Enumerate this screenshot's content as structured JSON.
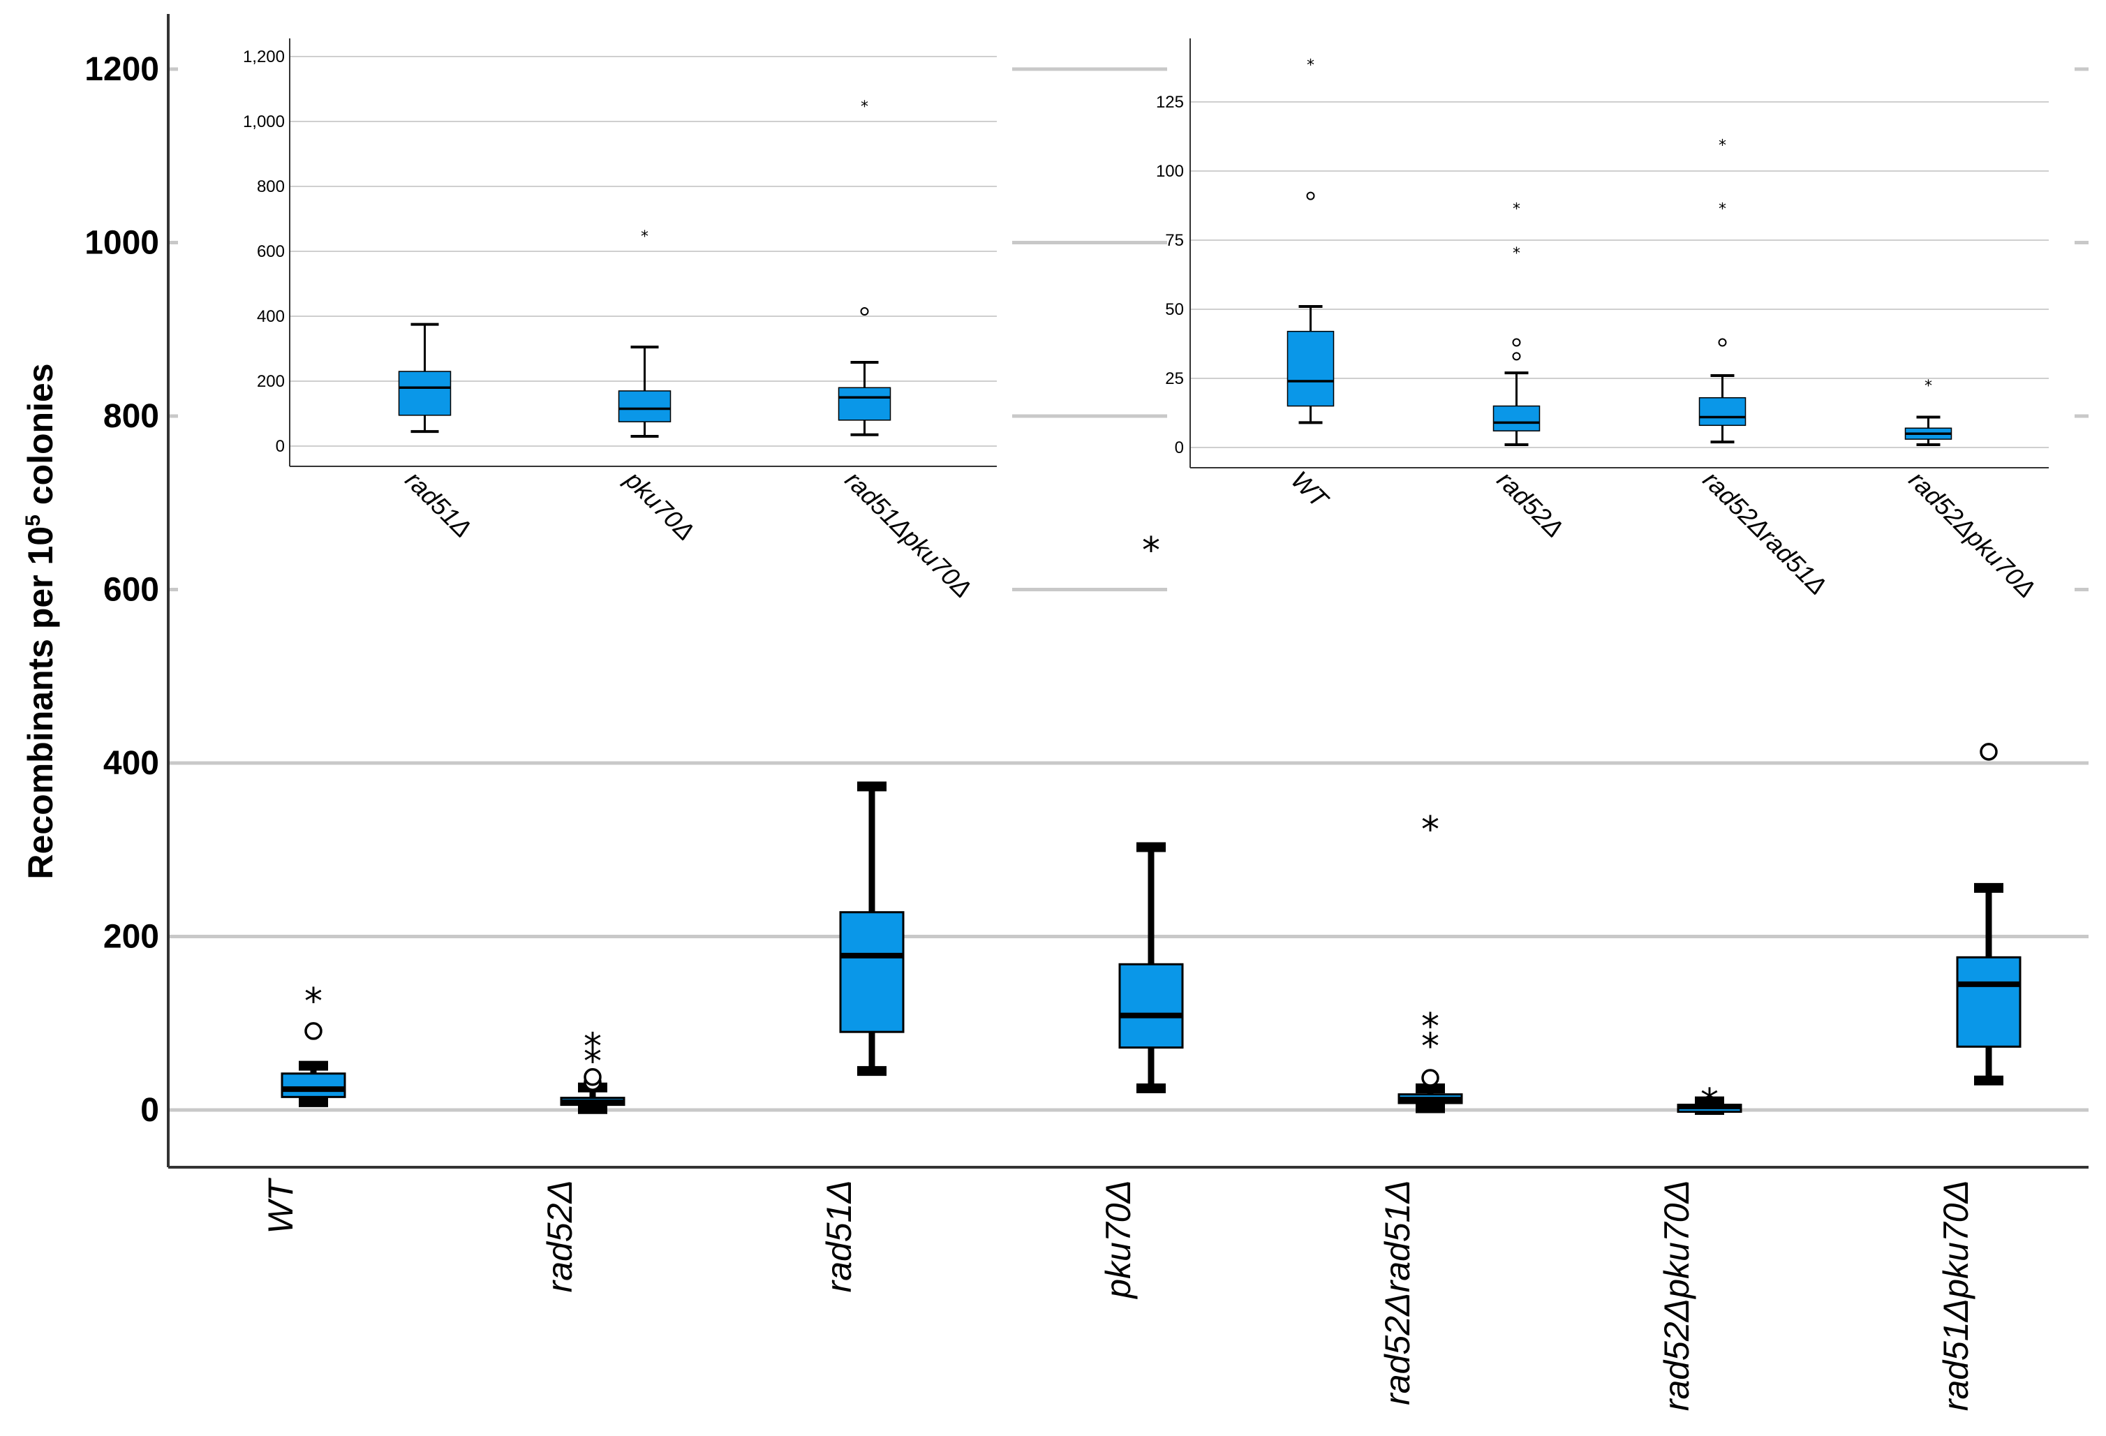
{
  "chart_data": [
    {
      "type": "box",
      "name": "main",
      "ylabel": "Recombinants per 10",
      "ylabel_sup": "5",
      "ylabel_suffix": " colonies",
      "ylim": [
        -65,
        1260
      ],
      "yticks": [
        0,
        200,
        400,
        600,
        800,
        1000,
        1200
      ],
      "ytick_labels": [
        "0",
        "200",
        "400",
        "600",
        "800",
        "1000",
        "1200"
      ],
      "color": "#0a97e8",
      "categories": [
        "WT",
        "rad52Δ",
        "rad51Δ",
        "pku70Δ",
        "rad52Δrad51Δ",
        "rad52Δpku70Δ",
        "rad51Δpku70Δ"
      ],
      "boxes": [
        {
          "min": 9,
          "q1": 15,
          "median": 24,
          "q3": 42,
          "max": 51,
          "outliers": [
            {
              "v": 91,
              "s": "o"
            },
            {
              "v": 140,
              "s": "*"
            }
          ]
        },
        {
          "min": 1,
          "q1": 6,
          "median": 9,
          "q3": 14,
          "max": 26,
          "outliers": [
            {
              "v": 32,
              "s": "o"
            },
            {
              "v": 38,
              "s": "o"
            },
            {
              "v": 71,
              "s": "*"
            },
            {
              "v": 88,
              "s": "*"
            }
          ]
        },
        {
          "min": 45,
          "q1": 90,
          "median": 178,
          "q3": 228,
          "max": 373,
          "outliers": []
        },
        {
          "min": 25,
          "q1": 72,
          "median": 109,
          "q3": 168,
          "max": 303,
          "outliers": [
            {
              "v": 660,
              "s": "*"
            }
          ]
        },
        {
          "min": 2,
          "q1": 8,
          "median": 12,
          "q3": 18,
          "max": 25,
          "outliers": [
            {
              "v": 37,
              "s": "o"
            },
            {
              "v": 88,
              "s": "*"
            },
            {
              "v": 111,
              "s": "*"
            },
            {
              "v": 338,
              "s": "*"
            }
          ]
        },
        {
          "min": 0,
          "q1": 2,
          "median": 4,
          "q3": 6,
          "max": 10,
          "outliers": [
            {
              "v": 24,
              "s": "*"
            }
          ]
        },
        {
          "min": 34,
          "q1": 73,
          "median": 145,
          "q3": 176,
          "max": 256,
          "outliers": [
            {
              "v": 413,
              "s": "o"
            }
          ]
        }
      ]
    },
    {
      "type": "box",
      "name": "inset-left",
      "ylim": [
        -60,
        1260
      ],
      "yticks": [
        0,
        200,
        400,
        600,
        800,
        1000,
        1200
      ],
      "ytick_labels": [
        "0",
        "200",
        "400",
        "600",
        "800",
        "1,000",
        "1,200"
      ],
      "color": "#0a97e8",
      "categories": [
        "rad51Δ",
        "pku70Δ",
        "rad51Δpku70Δ"
      ],
      "boxes": [
        {
          "min": 45,
          "q1": 95,
          "median": 180,
          "q3": 230,
          "max": 375,
          "outliers": []
        },
        {
          "min": 30,
          "q1": 75,
          "median": 115,
          "q3": 170,
          "max": 305,
          "outliers": [
            {
              "v": 660,
              "s": "*"
            }
          ]
        },
        {
          "min": 35,
          "q1": 80,
          "median": 150,
          "q3": 180,
          "max": 258,
          "outliers": [
            {
              "v": 415,
              "s": "o"
            },
            {
              "v": 1060,
              "s": "*"
            }
          ]
        }
      ]
    },
    {
      "type": "box",
      "name": "inset-right",
      "ylim": [
        -7,
        147
      ],
      "yticks": [
        0,
        25,
        50,
        75,
        100,
        125
      ],
      "ytick_labels": [
        "0",
        "25",
        "50",
        "75",
        "100",
        "125"
      ],
      "color": "#0a97e8",
      "categories": [
        "WT",
        "rad52Δ",
        "rad52Δrad51Δ",
        "rad52Δpku70Δ"
      ],
      "boxes": [
        {
          "min": 9,
          "q1": 15,
          "median": 24,
          "q3": 42,
          "max": 51,
          "outliers": [
            {
              "v": 91,
              "s": "o"
            },
            {
              "v": 140,
              "s": "*"
            }
          ]
        },
        {
          "min": 1,
          "q1": 6,
          "median": 9,
          "q3": 15,
          "max": 27,
          "outliers": [
            {
              "v": 33,
              "s": "o"
            },
            {
              "v": 38,
              "s": "o"
            },
            {
              "v": 72,
              "s": "*"
            },
            {
              "v": 88,
              "s": "*"
            }
          ]
        },
        {
          "min": 2,
          "q1": 8,
          "median": 11,
          "q3": 18,
          "max": 26,
          "outliers": [
            {
              "v": 38,
              "s": "o"
            },
            {
              "v": 88,
              "s": "*"
            },
            {
              "v": 111,
              "s": "*"
            }
          ]
        },
        {
          "min": 1,
          "q1": 3,
          "median": 5,
          "q3": 7,
          "max": 11,
          "outliers": [
            {
              "v": 24,
              "s": "*"
            }
          ]
        }
      ]
    }
  ]
}
